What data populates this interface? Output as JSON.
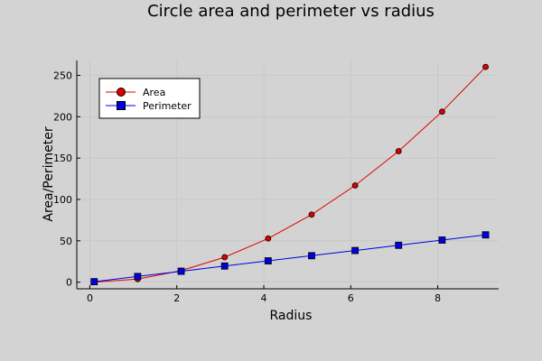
{
  "chart_data": {
    "type": "line",
    "title": "Circle area and perimeter vs radius",
    "xlabel": "Radius",
    "ylabel": "Area/Perimeter",
    "xlim": [
      -0.3,
      9.4
    ],
    "ylim": [
      -8,
      268
    ],
    "xticks": [
      0,
      2,
      4,
      6,
      8
    ],
    "yticks": [
      0,
      50,
      100,
      150,
      200,
      250
    ],
    "grid": true,
    "legend_position": "top-left",
    "series": [
      {
        "name": "Area",
        "color": "#e00000",
        "marker": "circle",
        "x": [
          0.1,
          1.1,
          2.1,
          3.1,
          4.1,
          5.1,
          6.1,
          7.1,
          8.1,
          9.1
        ],
        "y": [
          0.03,
          3.8,
          13.9,
          30.2,
          52.8,
          81.7,
          116.9,
          158.4,
          206.1,
          260.2
        ]
      },
      {
        "name": "Perimeter",
        "color": "#0000e0",
        "marker": "square",
        "x": [
          0.1,
          1.1,
          2.1,
          3.1,
          4.1,
          5.1,
          6.1,
          7.1,
          8.1,
          9.1
        ],
        "y": [
          0.6,
          6.9,
          13.2,
          19.5,
          25.8,
          32.0,
          38.3,
          44.6,
          50.9,
          57.2
        ]
      }
    ]
  }
}
